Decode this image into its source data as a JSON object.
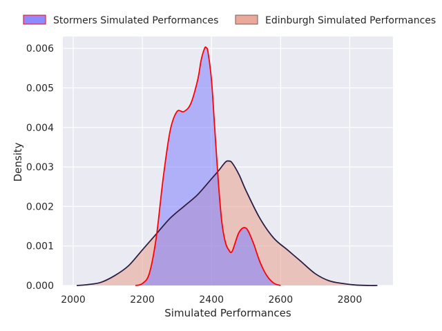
{
  "chart_data": {
    "type": "area",
    "title": "",
    "xlabel": "Simulated Performances",
    "ylabel": "Density",
    "xlim": [
      1970,
      2925
    ],
    "ylim": [
      0,
      0.0063
    ],
    "x_ticks": [
      2000,
      2200,
      2400,
      2600,
      2800
    ],
    "x_tick_labels": [
      "2000",
      "2200",
      "2400",
      "2600",
      "2800"
    ],
    "y_ticks": [
      0,
      0.001,
      0.002,
      0.003,
      0.004,
      0.005,
      0.006
    ],
    "y_tick_labels": [
      "0.000",
      "0.001",
      "0.002",
      "0.003",
      "0.004",
      "0.005",
      "0.006"
    ],
    "grid": true,
    "legend_position": "top",
    "background_color": "#eaeaf2",
    "series": [
      {
        "name": "Stormers Simulated Performances",
        "fill_color": "#8080ff",
        "line_color": "#ff0000",
        "x": [
          2180,
          2200,
          2220,
          2240,
          2260,
          2280,
          2300,
          2320,
          2340,
          2360,
          2370,
          2380,
          2385,
          2390,
          2400,
          2410,
          2420,
          2430,
          2440,
          2450,
          2460,
          2480,
          2500,
          2520,
          2540,
          2560,
          2580,
          2600
        ],
        "y": [
          0.0,
          5e-05,
          0.0003,
          0.0012,
          0.0027,
          0.0039,
          0.0044,
          0.0044,
          0.0046,
          0.0052,
          0.0057,
          0.006,
          0.00602,
          0.0059,
          0.0052,
          0.0039,
          0.0026,
          0.0016,
          0.0011,
          0.0009,
          0.00087,
          0.00135,
          0.00145,
          0.0011,
          0.0006,
          0.00025,
          6e-05,
          0.0
        ]
      },
      {
        "name": "Edinburgh Simulated Performances",
        "fill_color": "#e8a090",
        "line_color": "#2a1e45",
        "x": [
          2010,
          2040,
          2080,
          2120,
          2160,
          2200,
          2240,
          2280,
          2320,
          2360,
          2400,
          2420,
          2440,
          2450,
          2460,
          2480,
          2500,
          2540,
          2580,
          2620,
          2660,
          2700,
          2740,
          2780,
          2820,
          2860,
          2880
        ],
        "y": [
          0.0,
          2e-05,
          8e-05,
          0.00025,
          0.0005,
          0.0009,
          0.0013,
          0.0017,
          0.002,
          0.0023,
          0.0027,
          0.0029,
          0.00312,
          0.00315,
          0.0031,
          0.0028,
          0.0024,
          0.0017,
          0.0012,
          0.0009,
          0.0006,
          0.0003,
          0.00012,
          5e-05,
          1e-05,
          0.0,
          0.0
        ]
      }
    ]
  }
}
